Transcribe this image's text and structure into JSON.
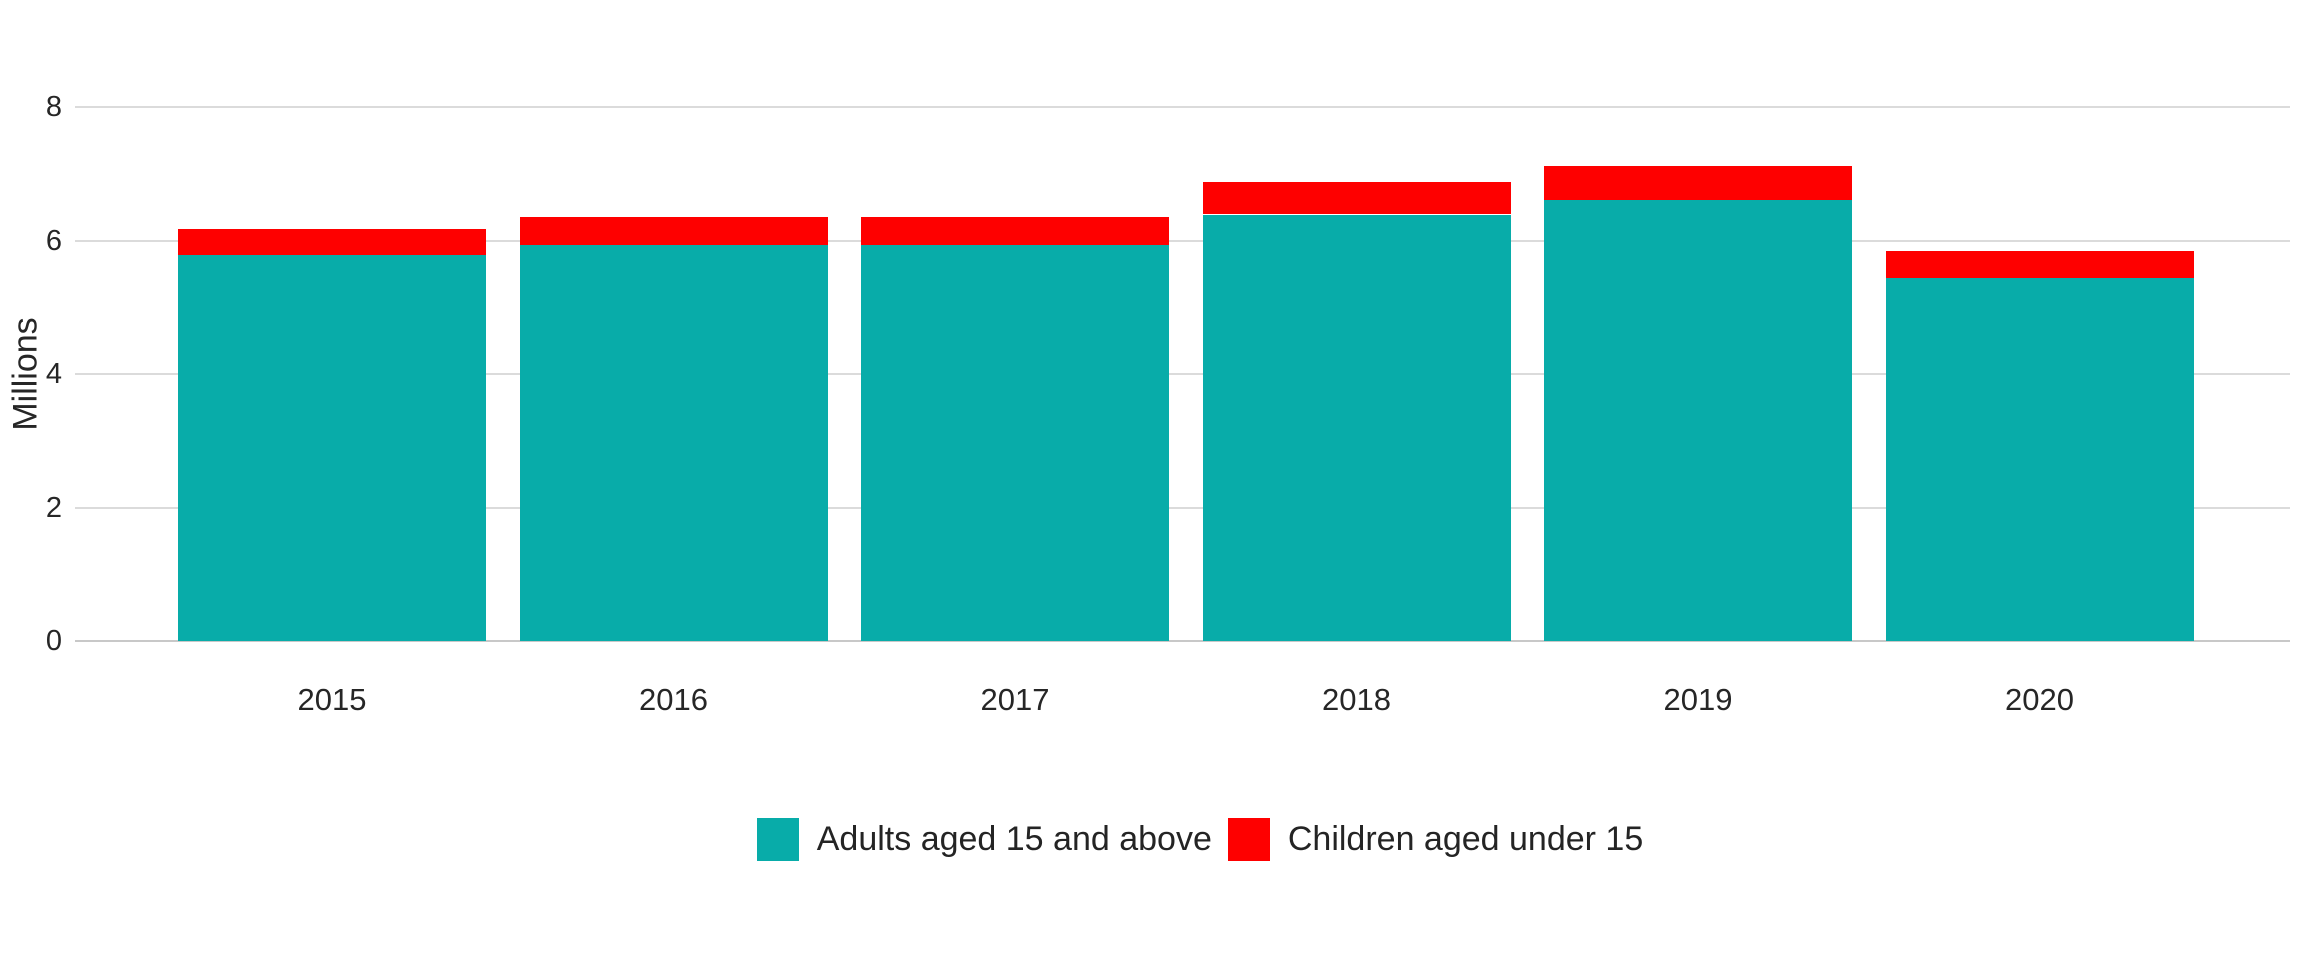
{
  "chart_data": {
    "type": "bar",
    "stacked": true,
    "title": "",
    "xlabel": "",
    "ylabel": "Millions",
    "ylim": [
      0,
      8
    ],
    "yticks": [
      0,
      2,
      4,
      6,
      8
    ],
    "grid": true,
    "legend_position": "bottom",
    "categories": [
      "2015",
      "2016",
      "2017",
      "2018",
      "2019",
      "2020"
    ],
    "series": [
      {
        "name": "Adults aged 15 and above",
        "color": "#08ACA9",
        "values": [
          5.79,
          5.94,
          5.93,
          6.39,
          6.61,
          5.44
        ]
      },
      {
        "name": "Children aged under 15",
        "color": "#FE0000",
        "values": [
          0.38,
          0.42,
          0.43,
          0.49,
          0.51,
          0.4
        ]
      }
    ],
    "totals": [
      6.17,
      6.36,
      6.36,
      6.88,
      7.12,
      5.84
    ]
  },
  "colors": {
    "gridline": "#dbdbdb",
    "axis_line": "#c8c8c8",
    "text": "#262626",
    "background": "#ffffff"
  }
}
